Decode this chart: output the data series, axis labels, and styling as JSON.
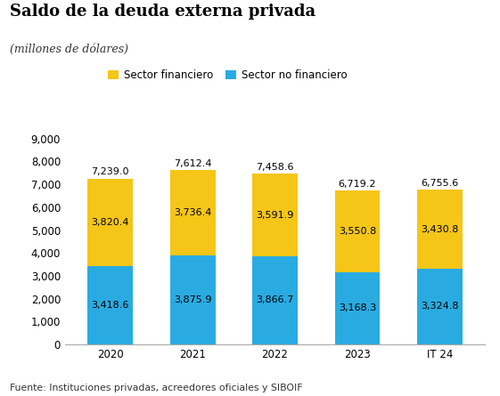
{
  "title": "Saldo de la deuda externa privada",
  "subtitle": "(millones de dólares)",
  "categories": [
    "2020",
    "2021",
    "2022",
    "2023",
    "IT 24"
  ],
  "sector_no_financiero": [
    3418.6,
    3875.9,
    3866.7,
    3168.3,
    3324.8
  ],
  "sector_financiero": [
    3820.4,
    3736.4,
    3591.9,
    3550.8,
    3430.8
  ],
  "totals": [
    7239.0,
    7612.4,
    7458.6,
    6719.2,
    6755.6
  ],
  "color_no_financiero": "#29ABE2",
  "color_financiero": "#F5C518",
  "legend_label_financiero": "Sector financiero",
  "legend_label_no_financiero": "Sector no financiero",
  "ylim": [
    0,
    9000
  ],
  "yticks": [
    0,
    1000,
    2000,
    3000,
    4000,
    5000,
    6000,
    7000,
    8000,
    9000
  ],
  "footnote": "Fuente: Instituciones privadas, acreedores oficiales y SIBOIF",
  "background_color": "#FFFFFF",
  "bar_width": 0.55,
  "label_fontsize": 8,
  "tick_fontsize": 8.5,
  "title_fontsize": 13,
  "subtitle_fontsize": 9,
  "footnote_fontsize": 7.8
}
